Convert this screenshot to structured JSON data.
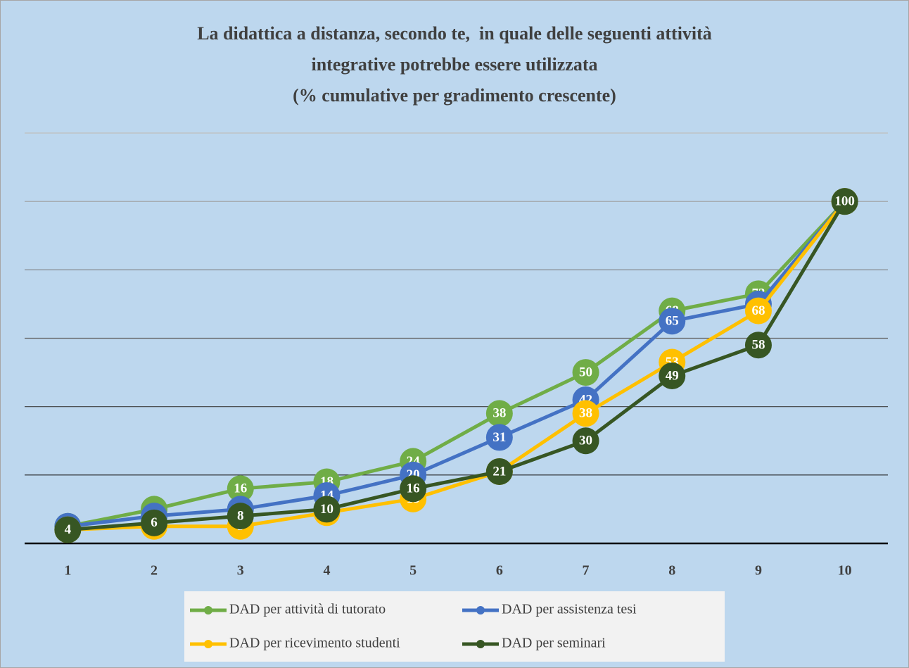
{
  "chart_data": {
    "type": "line",
    "title": "La didattica a distanza, secondo te,  in quale delle seguenti attività\nintegrative potrebbe essere utilizzata\n(% cumulative per gradimento crescente)",
    "categories": [
      "1",
      "2",
      "3",
      "4",
      "5",
      "6",
      "7",
      "8",
      "9",
      "10"
    ],
    "series": [
      {
        "name": "DAD per attività di tutorato",
        "color": "#70ad47",
        "values": [
          5,
          10,
          16,
          18,
          24,
          38,
          50,
          68,
          73,
          100
        ]
      },
      {
        "name": "DAD per assistenza tesi",
        "color": "#4472c4",
        "values": [
          5,
          8,
          10,
          14,
          20,
          31,
          42,
          65,
          70,
          100
        ]
      },
      {
        "name": "DAD per ricevimento studenti",
        "color": "#ffc000",
        "values": [
          4,
          5,
          5,
          9,
          13,
          21,
          38,
          53,
          68,
          100
        ]
      },
      {
        "name": "DAD per seminari",
        "color": "#375623",
        "values": [
          4,
          6,
          8,
          10,
          16,
          21,
          30,
          49,
          58,
          100
        ]
      }
    ],
    "ylim": [
      0,
      120
    ],
    "yticks": [
      0,
      20,
      40,
      60,
      80,
      100,
      120
    ],
    "grid": true,
    "legend": "bottom"
  }
}
